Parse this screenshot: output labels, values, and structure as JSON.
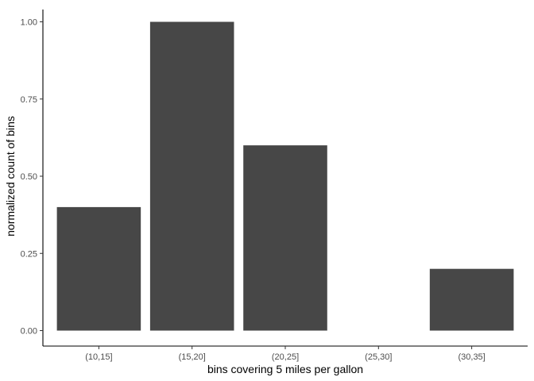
{
  "chart_data": {
    "type": "bar",
    "categories": [
      "(10,15]",
      "(15,20]",
      "(20,25]",
      "(25,30]",
      "(30,35]"
    ],
    "values": [
      0.4,
      1.0,
      0.6,
      0.0,
      0.2
    ],
    "title": "",
    "xlabel": "bins covering 5 miles per gallon",
    "ylabel": "normalized count of bins",
    "ylim": [
      -0.05,
      1.05
    ],
    "yticks": [
      "0.00",
      "0.25",
      "0.50",
      "0.75",
      "1.00"
    ],
    "ytick_values": [
      0,
      0.25,
      0.5,
      0.75,
      1.0
    ],
    "bar_color": "#474747",
    "grid": false
  }
}
